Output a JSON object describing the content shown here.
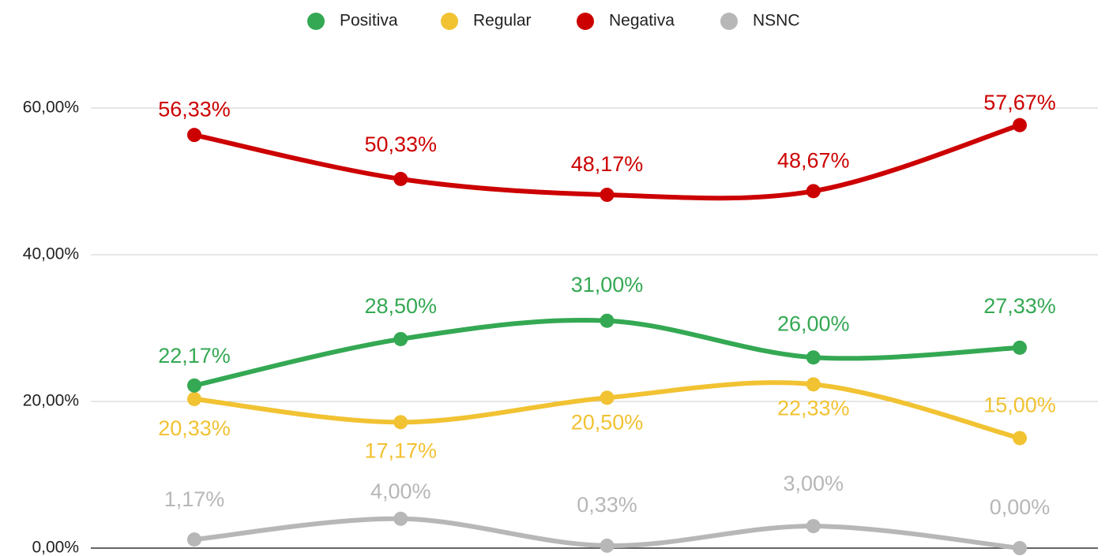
{
  "chart_data": {
    "type": "line",
    "legend": "top",
    "grid": true,
    "categories": [
      null,
      null,
      null,
      null,
      null
    ],
    "ylim": [
      0,
      60
    ],
    "yticks": [
      {
        "value": 0,
        "label": "0,00%"
      },
      {
        "value": 20,
        "label": "20,00%"
      },
      {
        "value": 40,
        "label": "40,00%"
      },
      {
        "value": 60,
        "label": "60,00%"
      }
    ],
    "series": [
      {
        "name": "Positiva",
        "color": "#34a853",
        "values": [
          22.17,
          28.5,
          31,
          26,
          27.33
        ],
        "value_labels": [
          "22,17%",
          "28,50%",
          "31,00%",
          "26,00%",
          "27,33%"
        ]
      },
      {
        "name": "Regular",
        "color": "#f1c232",
        "values": [
          20.33,
          17.17,
          20.5,
          22.33,
          15
        ],
        "value_labels": [
          "20,33%",
          "17,17%",
          "20,50%",
          "22,33%",
          "15,00%"
        ]
      },
      {
        "name": "Negativa",
        "color": "#cc0000",
        "values": [
          56.33,
          50.33,
          48.17,
          48.67,
          57.67
        ],
        "value_labels": [
          "56,33%",
          "50,33%",
          "48,17%",
          "48,67%",
          "57,67%"
        ]
      },
      {
        "name": "NSNC",
        "color": "#b7b7b7",
        "values": [
          1.17,
          4,
          0.33,
          3,
          0
        ],
        "value_labels": [
          "1,17%",
          "4,00%",
          "0,33%",
          "3,00%",
          "0,00%"
        ]
      }
    ]
  }
}
